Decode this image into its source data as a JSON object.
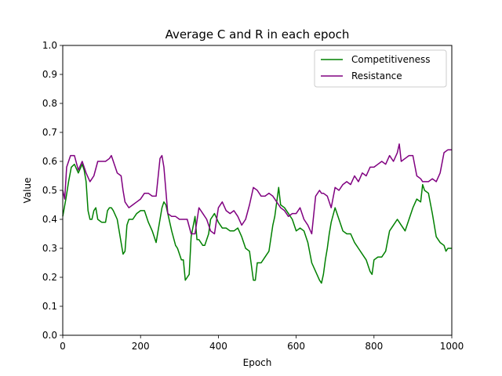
{
  "chart_data": {
    "type": "line",
    "title": "Average C and R in each epoch",
    "xlabel": "Epoch",
    "ylabel": "Value",
    "xlim": [
      0,
      1000
    ],
    "ylim": [
      0.0,
      1.0
    ],
    "x_ticks": [
      0,
      200,
      400,
      600,
      800,
      1000
    ],
    "x_tick_labels": [
      "0",
      "200",
      "400",
      "600",
      "800",
      "1000"
    ],
    "y_ticks": [
      0.0,
      0.1,
      0.2,
      0.3,
      0.4,
      0.5,
      0.6,
      0.7,
      0.8,
      0.9,
      1.0
    ],
    "y_tick_labels": [
      "0.0",
      "0.1",
      "0.2",
      "0.3",
      "0.4",
      "0.5",
      "0.6",
      "0.7",
      "0.8",
      "0.9",
      "1.0"
    ],
    "grid": false,
    "legend_position": "top-right",
    "series": [
      {
        "name": "Competitiveness",
        "color": "#008000",
        "x": [
          0,
          8,
          15,
          22,
          30,
          40,
          50,
          55,
          60,
          65,
          70,
          75,
          80,
          85,
          90,
          100,
          110,
          115,
          120,
          125,
          130,
          140,
          150,
          155,
          160,
          165,
          170,
          180,
          190,
          200,
          210,
          220,
          230,
          240,
          245,
          250,
          255,
          260,
          265,
          270,
          280,
          290,
          295,
          300,
          305,
          310,
          315,
          320,
          325,
          330,
          340,
          345,
          350,
          360,
          365,
          370,
          375,
          380,
          390,
          400,
          410,
          420,
          430,
          440,
          450,
          460,
          470,
          480,
          485,
          490,
          495,
          500,
          510,
          520,
          530,
          540,
          545,
          550,
          555,
          560,
          570,
          580,
          590,
          600,
          610,
          620,
          630,
          640,
          650,
          660,
          665,
          670,
          675,
          680,
          685,
          690,
          700,
          710,
          720,
          730,
          740,
          750,
          760,
          770,
          780,
          790,
          795,
          800,
          810,
          820,
          830,
          840,
          850,
          860,
          870,
          880,
          890,
          900,
          910,
          920,
          925,
          930,
          940,
          950,
          960,
          970,
          980,
          985,
          990,
          1000
        ],
        "values": [
          0.41,
          0.47,
          0.53,
          0.58,
          0.59,
          0.56,
          0.59,
          0.57,
          0.53,
          0.43,
          0.4,
          0.4,
          0.43,
          0.44,
          0.4,
          0.39,
          0.39,
          0.43,
          0.44,
          0.44,
          0.43,
          0.4,
          0.32,
          0.28,
          0.29,
          0.38,
          0.4,
          0.4,
          0.42,
          0.43,
          0.43,
          0.39,
          0.36,
          0.32,
          0.36,
          0.4,
          0.44,
          0.46,
          0.45,
          0.42,
          0.36,
          0.31,
          0.3,
          0.28,
          0.26,
          0.26,
          0.19,
          0.2,
          0.21,
          0.34,
          0.41,
          0.33,
          0.33,
          0.31,
          0.31,
          0.33,
          0.35,
          0.4,
          0.42,
          0.39,
          0.37,
          0.37,
          0.36,
          0.36,
          0.37,
          0.34,
          0.3,
          0.29,
          0.24,
          0.19,
          0.19,
          0.25,
          0.25,
          0.27,
          0.29,
          0.38,
          0.41,
          0.46,
          0.51,
          0.45,
          0.44,
          0.42,
          0.4,
          0.36,
          0.37,
          0.36,
          0.32,
          0.25,
          0.22,
          0.19,
          0.18,
          0.21,
          0.26,
          0.3,
          0.35,
          0.39,
          0.44,
          0.4,
          0.36,
          0.35,
          0.35,
          0.32,
          0.3,
          0.28,
          0.26,
          0.22,
          0.21,
          0.26,
          0.27,
          0.27,
          0.29,
          0.36,
          0.38,
          0.4,
          0.38,
          0.36,
          0.4,
          0.44,
          0.47,
          0.46,
          0.52,
          0.5,
          0.49,
          0.42,
          0.34,
          0.32,
          0.31,
          0.29,
          0.3,
          0.3
        ]
      },
      {
        "name": "Resistance",
        "color": "#800080",
        "x": [
          0,
          5,
          10,
          20,
          30,
          40,
          50,
          60,
          70,
          80,
          90,
          100,
          110,
          120,
          125,
          130,
          140,
          150,
          155,
          160,
          165,
          170,
          180,
          190,
          200,
          210,
          220,
          230,
          240,
          250,
          255,
          260,
          270,
          280,
          290,
          300,
          310,
          320,
          330,
          340,
          350,
          360,
          370,
          380,
          390,
          400,
          410,
          420,
          430,
          440,
          450,
          460,
          470,
          480,
          490,
          500,
          510,
          520,
          530,
          540,
          550,
          555,
          560,
          570,
          580,
          590,
          600,
          610,
          620,
          630,
          640,
          650,
          660,
          665,
          670,
          680,
          690,
          700,
          710,
          720,
          730,
          740,
          750,
          760,
          770,
          780,
          790,
          800,
          810,
          820,
          830,
          840,
          850,
          860,
          865,
          870,
          880,
          890,
          900,
          910,
          920,
          925,
          930,
          940,
          950,
          960,
          970,
          980,
          990,
          1000
        ],
        "values": [
          0.5,
          0.47,
          0.58,
          0.62,
          0.62,
          0.57,
          0.6,
          0.56,
          0.53,
          0.55,
          0.6,
          0.6,
          0.6,
          0.61,
          0.62,
          0.6,
          0.56,
          0.55,
          0.5,
          0.46,
          0.45,
          0.44,
          0.45,
          0.46,
          0.47,
          0.49,
          0.49,
          0.48,
          0.48,
          0.61,
          0.62,
          0.58,
          0.42,
          0.41,
          0.41,
          0.4,
          0.4,
          0.4,
          0.35,
          0.35,
          0.44,
          0.42,
          0.4,
          0.36,
          0.35,
          0.44,
          0.46,
          0.43,
          0.42,
          0.43,
          0.41,
          0.38,
          0.4,
          0.45,
          0.51,
          0.5,
          0.48,
          0.48,
          0.49,
          0.48,
          0.46,
          0.45,
          0.44,
          0.43,
          0.41,
          0.42,
          0.42,
          0.44,
          0.4,
          0.38,
          0.35,
          0.48,
          0.5,
          0.49,
          0.49,
          0.48,
          0.44,
          0.51,
          0.5,
          0.52,
          0.53,
          0.52,
          0.55,
          0.53,
          0.56,
          0.55,
          0.58,
          0.58,
          0.59,
          0.6,
          0.59,
          0.62,
          0.6,
          0.63,
          0.66,
          0.6,
          0.61,
          0.62,
          0.62,
          0.55,
          0.54,
          0.53,
          0.53,
          0.53,
          0.54,
          0.53,
          0.56,
          0.63,
          0.64,
          0.64
        ]
      }
    ]
  }
}
